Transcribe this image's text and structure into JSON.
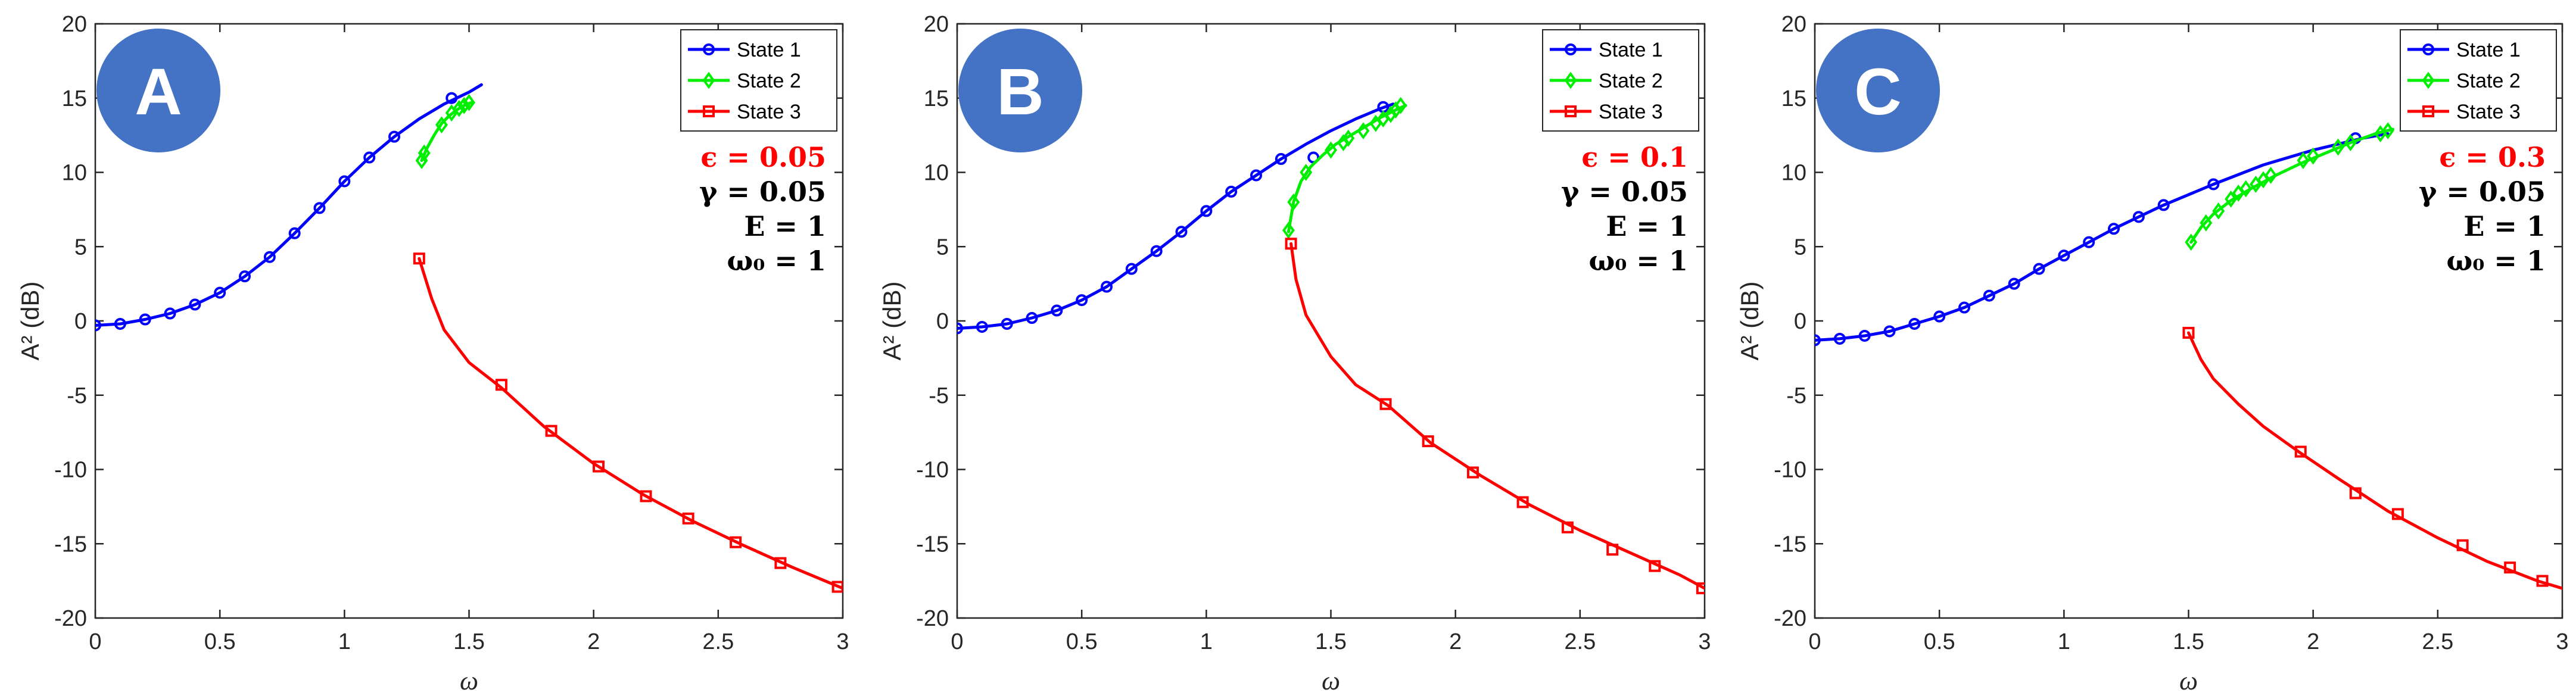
{
  "colors": {
    "state1": "#0000ff",
    "state2": "#00ee00",
    "state3": "#ff0000",
    "badge": "#4472c4",
    "epsilon_text": "#ff0000",
    "param_text": "#000000"
  },
  "chart_data": [
    {
      "type": "line",
      "panel_label": "A",
      "xlabel": "ω",
      "ylabel": "A² (dB)",
      "xlim": [
        0,
        3
      ],
      "ylim": [
        -20,
        20
      ],
      "xticks": [
        "0",
        "0.5",
        "1",
        "1.5",
        "2",
        "2.5",
        "3"
      ],
      "yticks": [
        "20",
        "15",
        "10",
        "5",
        "0",
        "-5",
        "-10",
        "-15",
        "-20"
      ],
      "grid": false,
      "legend": {
        "position": "top-right",
        "entries": [
          "State 1",
          "State 2",
          "State 3"
        ]
      },
      "params": {
        "epsilon": "ϵ = 0.05",
        "gamma": "γ = 0.05",
        "E": "E = 1",
        "omega0": "ω₀ = 1"
      },
      "series": [
        {
          "name": "State 1",
          "marker": "circle",
          "x": [
            0,
            0.1,
            0.2,
            0.3,
            0.4,
            0.5,
            0.6,
            0.7,
            0.8,
            0.9,
            1.0,
            1.1,
            1.2,
            1.3,
            1.4,
            1.5,
            1.55
          ],
          "y": [
            -0.3,
            -0.2,
            0.1,
            0.5,
            1.1,
            1.9,
            3.0,
            4.3,
            5.9,
            7.6,
            9.4,
            11.0,
            12.4,
            13.6,
            14.6,
            15.4,
            15.9
          ],
          "marker_x": [
            0,
            0.1,
            0.2,
            0.3,
            0.4,
            0.5,
            0.6,
            0.7,
            0.8,
            0.9,
            1.0,
            1.1,
            1.2,
            1.43
          ],
          "marker_y": [
            -0.3,
            -0.2,
            0.1,
            0.5,
            1.1,
            1.9,
            3.0,
            4.3,
            5.9,
            7.6,
            9.4,
            11.0,
            12.4,
            15.0
          ]
        },
        {
          "name": "State 2",
          "marker": "diamond",
          "x": [
            1.31,
            1.33,
            1.36,
            1.39,
            1.42,
            1.45,
            1.48,
            1.51
          ],
          "y": [
            10.8,
            11.6,
            12.5,
            13.3,
            13.8,
            14.2,
            14.5,
            14.7
          ],
          "marker_x": [
            1.31,
            1.32,
            1.39,
            1.43,
            1.46,
            1.48,
            1.5
          ],
          "marker_y": [
            10.8,
            11.3,
            13.2,
            14.0,
            14.3,
            14.5,
            14.7
          ]
        },
        {
          "name": "State 3",
          "marker": "square",
          "x": [
            1.3,
            1.35,
            1.4,
            1.5,
            1.63,
            1.8,
            2.0,
            2.2,
            2.4,
            2.6,
            2.8,
            3.0
          ],
          "y": [
            4.2,
            1.5,
            -0.6,
            -2.8,
            -4.5,
            -7.1,
            -9.6,
            -11.7,
            -13.5,
            -15.1,
            -16.6,
            -18.0
          ],
          "marker_x": [
            1.3,
            1.63,
            1.83,
            2.02,
            2.21,
            2.38,
            2.57,
            2.75,
            2.98
          ],
          "marker_y": [
            4.2,
            -4.3,
            -7.4,
            -9.8,
            -11.8,
            -13.3,
            -14.9,
            -16.3,
            -17.9
          ]
        }
      ]
    },
    {
      "type": "line",
      "panel_label": "B",
      "xlabel": "ω",
      "ylabel": "A² (dB)",
      "xlim": [
        0,
        3
      ],
      "ylim": [
        -20,
        20
      ],
      "xticks": [
        "0",
        "0.5",
        "1",
        "1.5",
        "2",
        "2.5",
        "3"
      ],
      "yticks": [
        "20",
        "15",
        "10",
        "5",
        "0",
        "-5",
        "-10",
        "-15",
        "-20"
      ],
      "grid": false,
      "legend": {
        "position": "top-right",
        "entries": [
          "State 1",
          "State 2",
          "State 3"
        ]
      },
      "params": {
        "epsilon": "ϵ = 0.1",
        "gamma": "γ = 0.05",
        "E": "E = 1",
        "omega0": "ω₀ = 1"
      },
      "series": [
        {
          "name": "State 1",
          "marker": "circle",
          "x": [
            0,
            0.1,
            0.2,
            0.3,
            0.4,
            0.5,
            0.6,
            0.7,
            0.8,
            0.9,
            1.0,
            1.1,
            1.2,
            1.3,
            1.4,
            1.5,
            1.6,
            1.7,
            1.75
          ],
          "y": [
            -0.5,
            -0.4,
            -0.2,
            0.2,
            0.7,
            1.4,
            2.3,
            3.5,
            4.7,
            6.0,
            7.4,
            8.7,
            9.8,
            10.9,
            11.9,
            12.8,
            13.6,
            14.3,
            14.6
          ],
          "marker_x": [
            0,
            0.1,
            0.2,
            0.3,
            0.4,
            0.5,
            0.6,
            0.7,
            0.8,
            0.9,
            1.0,
            1.1,
            1.2,
            1.3,
            1.43,
            1.71
          ],
          "marker_y": [
            -0.5,
            -0.4,
            -0.2,
            0.2,
            0.7,
            1.4,
            2.3,
            3.5,
            4.7,
            6.0,
            7.4,
            8.7,
            9.8,
            10.9,
            11.0,
            14.4
          ]
        },
        {
          "name": "State 2",
          "marker": "diamond",
          "x": [
            1.33,
            1.35,
            1.38,
            1.42,
            1.47,
            1.52,
            1.58,
            1.64,
            1.7,
            1.76,
            1.8
          ],
          "y": [
            6.0,
            8.0,
            9.4,
            10.4,
            11.2,
            11.9,
            12.5,
            13.1,
            13.7,
            14.2,
            14.5
          ],
          "marker_x": [
            1.33,
            1.35,
            1.4,
            1.5,
            1.55,
            1.57,
            1.63,
            1.68,
            1.71,
            1.74,
            1.76,
            1.78
          ],
          "marker_y": [
            6.1,
            8.0,
            10.0,
            11.5,
            12.0,
            12.3,
            12.8,
            13.3,
            13.6,
            13.9,
            14.2,
            14.5
          ]
        },
        {
          "name": "State 3",
          "marker": "square",
          "x": [
            1.34,
            1.36,
            1.4,
            1.5,
            1.6,
            1.73,
            1.9,
            2.1,
            2.3,
            2.5,
            2.7,
            2.9,
            3.0
          ],
          "y": [
            5.2,
            2.8,
            0.4,
            -2.4,
            -4.3,
            -5.7,
            -8.2,
            -10.4,
            -12.4,
            -14.1,
            -15.6,
            -17.1,
            -18.0
          ],
          "marker_x": [
            1.34,
            1.72,
            1.89,
            2.07,
            2.27,
            2.45,
            2.63,
            2.8,
            2.99
          ],
          "marker_y": [
            5.2,
            -5.6,
            -8.1,
            -10.2,
            -12.2,
            -13.9,
            -15.4,
            -16.5,
            -18.0
          ]
        }
      ]
    },
    {
      "type": "line",
      "panel_label": "C",
      "xlabel": "ω",
      "ylabel": "A² (dB)",
      "xlim": [
        0,
        3
      ],
      "ylim": [
        -20,
        20
      ],
      "xticks": [
        "0",
        "0.5",
        "1",
        "1.5",
        "2",
        "2.5",
        "3"
      ],
      "yticks": [
        "20",
        "15",
        "10",
        "5",
        "0",
        "-5",
        "-10",
        "-15",
        "-20"
      ],
      "grid": false,
      "legend": {
        "position": "top-right",
        "entries": [
          "State 1",
          "State 2",
          "State 3"
        ]
      },
      "params": {
        "epsilon": "ϵ = 0.3",
        "gamma": "γ = 0.05",
        "E": "E = 1",
        "omega0": "ω₀ = 1"
      },
      "series": [
        {
          "name": "State 1",
          "marker": "circle",
          "x": [
            0,
            0.1,
            0.2,
            0.3,
            0.4,
            0.5,
            0.6,
            0.7,
            0.8,
            0.9,
            1.0,
            1.1,
            1.2,
            1.3,
            1.4,
            1.6,
            1.8,
            2.0,
            2.2,
            2.3
          ],
          "y": [
            -1.3,
            -1.2,
            -1.0,
            -0.7,
            -0.2,
            0.3,
            0.9,
            1.7,
            2.5,
            3.5,
            4.4,
            5.3,
            6.2,
            7.0,
            7.8,
            9.2,
            10.5,
            11.5,
            12.3,
            12.6
          ],
          "marker_x": [
            0,
            0.1,
            0.2,
            0.3,
            0.4,
            0.5,
            0.6,
            0.7,
            0.8,
            0.9,
            1.0,
            1.1,
            1.2,
            1.3,
            1.4,
            1.6,
            2.17
          ],
          "marker_y": [
            -1.3,
            -1.2,
            -1.0,
            -0.7,
            -0.2,
            0.3,
            0.9,
            1.7,
            2.5,
            3.5,
            4.4,
            5.3,
            6.2,
            7.0,
            7.8,
            9.2,
            12.3
          ]
        },
        {
          "name": "State 2",
          "marker": "diamond",
          "x": [
            1.51,
            1.55,
            1.6,
            1.67,
            1.75,
            1.85,
            1.95,
            2.05,
            2.15,
            2.25,
            2.32
          ],
          "y": [
            5.3,
            6.3,
            7.2,
            8.1,
            8.9,
            9.8,
            10.6,
            11.3,
            12.0,
            12.6,
            12.9
          ],
          "marker_x": [
            1.51,
            1.57,
            1.62,
            1.67,
            1.7,
            1.73,
            1.77,
            1.8,
            1.83,
            1.96,
            2.0,
            2.1,
            2.15,
            2.27,
            2.3
          ],
          "marker_y": [
            5.3,
            6.6,
            7.4,
            8.2,
            8.6,
            8.9,
            9.2,
            9.5,
            9.8,
            10.8,
            11.1,
            11.7,
            12.0,
            12.6,
            12.8
          ]
        },
        {
          "name": "State 3",
          "marker": "square",
          "x": [
            1.5,
            1.55,
            1.6,
            1.7,
            1.8,
            1.95,
            2.1,
            2.3,
            2.5,
            2.7,
            2.9,
            3.0
          ],
          "y": [
            -0.8,
            -2.6,
            -3.9,
            -5.6,
            -7.1,
            -8.9,
            -10.6,
            -12.8,
            -14.6,
            -16.2,
            -17.5,
            -18.0
          ],
          "marker_x": [
            1.5,
            1.95,
            2.17,
            2.34,
            2.6,
            2.79,
            2.92
          ],
          "marker_y": [
            -0.8,
            -8.8,
            -11.6,
            -13.0,
            -15.1,
            -16.6,
            -17.5
          ]
        }
      ]
    }
  ]
}
